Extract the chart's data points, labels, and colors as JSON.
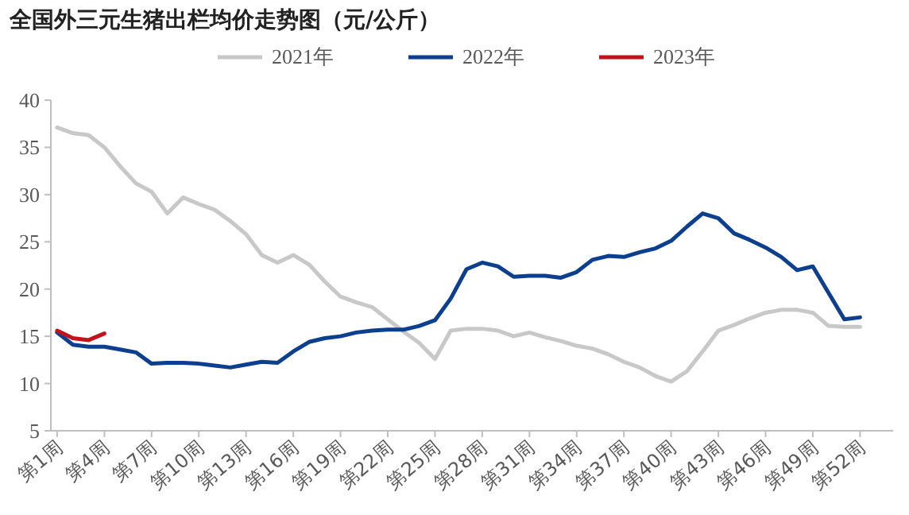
{
  "chart_data": {
    "type": "line",
    "title": "全国外三元生猪出栏均价走势图（元/公斤）",
    "categories": [
      "第1周",
      null,
      null,
      "第4周",
      null,
      null,
      "第7周",
      null,
      null,
      "第10周",
      null,
      null,
      "第13周",
      null,
      null,
      "第16周",
      null,
      null,
      "第19周",
      null,
      null,
      "第22周",
      null,
      null,
      "第25周",
      null,
      null,
      "第28周",
      null,
      null,
      "第31周",
      null,
      null,
      "第34周",
      null,
      null,
      "第37周",
      null,
      null,
      "第40周",
      null,
      null,
      "第43周",
      null,
      null,
      "第46周",
      null,
      null,
      "第49周",
      null,
      null,
      "第52周"
    ],
    "series": [
      {
        "name": "2021年",
        "color": "#c8c8c8",
        "values": [
          37.1,
          36.5,
          36.3,
          35.0,
          33.0,
          31.2,
          30.3,
          28.0,
          29.7,
          29.0,
          28.4,
          27.2,
          25.8,
          23.6,
          22.8,
          23.6,
          22.6,
          20.8,
          19.2,
          18.6,
          18.1,
          16.8,
          15.5,
          14.3,
          12.6,
          15.6,
          15.8,
          15.8,
          15.6,
          15.0,
          15.4,
          14.9,
          14.5,
          14.0,
          13.7,
          13.1,
          12.3,
          11.7,
          10.8,
          10.2,
          11.3,
          13.4,
          15.6,
          16.2,
          16.9,
          17.5,
          17.8,
          17.8,
          17.5,
          16.1,
          16.0,
          16.0
        ]
      },
      {
        "name": "2022年",
        "color": "#0d3f8f",
        "values": [
          15.4,
          14.1,
          13.9,
          13.9,
          13.6,
          13.3,
          12.1,
          12.2,
          12.2,
          12.1,
          11.9,
          11.7,
          12.0,
          12.3,
          12.2,
          13.4,
          14.4,
          14.8,
          15.0,
          15.4,
          15.6,
          15.7,
          15.7,
          16.1,
          16.7,
          19.0,
          22.1,
          22.8,
          22.4,
          21.3,
          21.4,
          21.4,
          21.2,
          21.8,
          23.1,
          23.5,
          23.4,
          23.9,
          24.3,
          25.1,
          26.6,
          28.0,
          27.5,
          25.9,
          25.2,
          24.4,
          23.4,
          22.0,
          22.4,
          19.6,
          16.8,
          17.0
        ]
      },
      {
        "name": "2023年",
        "color": "#c0141c",
        "values": [
          15.6,
          14.8,
          14.6,
          15.3,
          null,
          null,
          null,
          null,
          null,
          null,
          null,
          null,
          null,
          null,
          null,
          null,
          null,
          null,
          null,
          null,
          null,
          null,
          null,
          null,
          null,
          null,
          null,
          null,
          null,
          null,
          null,
          null,
          null,
          null,
          null,
          null,
          null,
          null,
          null,
          null,
          null,
          null,
          null,
          null,
          null,
          null,
          null,
          null,
          null,
          null,
          null,
          null
        ]
      }
    ],
    "ylim": [
      5,
      40
    ],
    "yticks": [
      5,
      10,
      15,
      20,
      25,
      30,
      35,
      40
    ],
    "grid": false,
    "legend": "top",
    "marker": "none",
    "line_style": "solid"
  }
}
